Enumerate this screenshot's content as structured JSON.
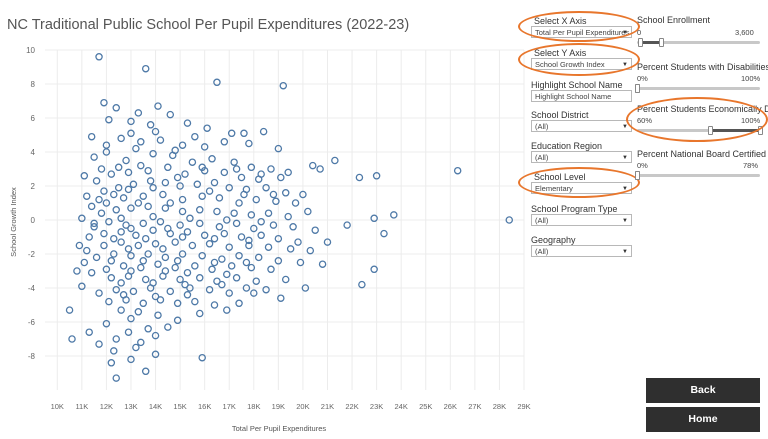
{
  "chart_data": {
    "type": "scatter",
    "title": "NC Traditional Public School Per Pupil Expenditures (2022-23)",
    "xlabel": "Total Per Pupil Expenditures",
    "ylabel": "School Growth Index",
    "xlim": [
      9500,
      29000
    ],
    "ylim": [
      -10,
      10
    ],
    "x_ticks": [
      "10K",
      "11K",
      "12K",
      "13K",
      "14K",
      "15K",
      "16K",
      "17K",
      "18K",
      "19K",
      "20K",
      "21K",
      "22K",
      "23K",
      "24K",
      "25K",
      "26K",
      "27K",
      "28K",
      "29K"
    ],
    "y_ticks": [
      "10",
      "8",
      "6",
      "4",
      "2",
      "0",
      "-2",
      "-4",
      "-6",
      "-8"
    ],
    "grid": true,
    "marker": "hollow-circle",
    "color": "#4e79a7",
    "points": [
      [
        11.7,
        9.6
      ],
      [
        13.6,
        8.9
      ],
      [
        16.5,
        8.1
      ],
      [
        19.2,
        7.9
      ],
      [
        11.9,
        6.9
      ],
      [
        12.4,
        6.6
      ],
      [
        13.3,
        6.3
      ],
      [
        14.1,
        6.7
      ],
      [
        14.6,
        6.2
      ],
      [
        12.1,
        5.9
      ],
      [
        13.0,
        5.8
      ],
      [
        13.8,
        5.6
      ],
      [
        15.3,
        5.7
      ],
      [
        16.1,
        5.4
      ],
      [
        17.1,
        5.1
      ],
      [
        17.6,
        5.1
      ],
      [
        18.4,
        5.2
      ],
      [
        11.4,
        4.9
      ],
      [
        12.6,
        4.8
      ],
      [
        13.4,
        4.6
      ],
      [
        14.2,
        4.7
      ],
      [
        15.1,
        4.4
      ],
      [
        16.0,
        4.3
      ],
      [
        19.0,
        4.2
      ],
      [
        21.3,
        3.5
      ],
      [
        20.4,
        3.2
      ],
      [
        20.7,
        3.0
      ],
      [
        26.3,
        2.9
      ],
      [
        22.3,
        2.5
      ],
      [
        23.0,
        2.6
      ],
      [
        23.7,
        0.3
      ],
      [
        22.9,
        0.1
      ],
      [
        21.8,
        -0.3
      ],
      [
        28.4,
        0.0
      ],
      [
        23.3,
        -0.8
      ],
      [
        21.0,
        -1.3
      ],
      [
        20.8,
        -2.6
      ],
      [
        22.9,
        -2.9
      ],
      [
        22.4,
        -3.8
      ],
      [
        20.1,
        -4.0
      ],
      [
        19.1,
        -4.6
      ],
      [
        18.0,
        -4.3
      ],
      [
        17.0,
        -4.3
      ],
      [
        16.9,
        -5.3
      ],
      [
        15.8,
        -5.5
      ],
      [
        14.9,
        -5.9
      ],
      [
        13.0,
        -5.8
      ],
      [
        12.0,
        -6.1
      ],
      [
        11.3,
        -6.6
      ],
      [
        10.6,
        -7.0
      ],
      [
        10.5,
        -5.3
      ],
      [
        11.7,
        -7.3
      ],
      [
        12.3,
        -7.7
      ],
      [
        13.4,
        -7.2
      ],
      [
        14.0,
        -6.8
      ],
      [
        15.9,
        -8.1
      ],
      [
        12.2,
        -8.4
      ],
      [
        13.0,
        -8.2
      ],
      [
        14.0,
        -7.9
      ],
      [
        13.6,
        -8.9
      ],
      [
        12.4,
        -9.3
      ],
      [
        11.0,
        -3.9
      ],
      [
        10.8,
        -3.0
      ],
      [
        10.9,
        -1.5
      ],
      [
        11.0,
        0.1
      ],
      [
        11.2,
        1.4
      ],
      [
        11.1,
        2.6
      ],
      [
        11.5,
        3.7
      ],
      [
        12.0,
        4.0
      ],
      [
        12.8,
        3.5
      ],
      [
        13.2,
        4.2
      ],
      [
        13.9,
        3.9
      ],
      [
        14.7,
        3.8
      ],
      [
        15.5,
        3.4
      ],
      [
        16.3,
        3.6
      ],
      [
        17.2,
        3.4
      ],
      [
        17.9,
        3.1
      ],
      [
        18.7,
        3.0
      ],
      [
        19.4,
        2.8
      ],
      [
        18.2,
        2.4
      ],
      [
        17.5,
        2.5
      ],
      [
        16.8,
        2.8
      ],
      [
        16.0,
        2.9
      ],
      [
        15.2,
        2.7
      ],
      [
        14.5,
        3.1
      ],
      [
        13.7,
        2.9
      ],
      [
        12.9,
        2.8
      ],
      [
        12.2,
        2.7
      ],
      [
        11.6,
        2.3
      ],
      [
        11.9,
        1.7
      ],
      [
        12.5,
        1.9
      ],
      [
        13.1,
        2.1
      ],
      [
        13.8,
        2.3
      ],
      [
        14.4,
        2.2
      ],
      [
        15.0,
        2.0
      ],
      [
        15.7,
        2.1
      ],
      [
        16.4,
        2.2
      ],
      [
        17.0,
        1.9
      ],
      [
        17.7,
        1.8
      ],
      [
        18.5,
        1.9
      ],
      [
        19.3,
        1.6
      ],
      [
        20.0,
        1.5
      ],
      [
        19.7,
        1.0
      ],
      [
        18.9,
        1.1
      ],
      [
        18.1,
        1.2
      ],
      [
        17.4,
        1.0
      ],
      [
        16.6,
        1.3
      ],
      [
        15.9,
        1.4
      ],
      [
        15.1,
        1.2
      ],
      [
        14.3,
        1.5
      ],
      [
        13.5,
        1.4
      ],
      [
        12.7,
        1.3
      ],
      [
        12.0,
        1.0
      ],
      [
        11.4,
        0.8
      ],
      [
        11.8,
        0.4
      ],
      [
        12.4,
        0.6
      ],
      [
        13.0,
        0.7
      ],
      [
        13.7,
        0.8
      ],
      [
        14.4,
        0.7
      ],
      [
        15.1,
        0.5
      ],
      [
        15.8,
        0.6
      ],
      [
        16.5,
        0.5
      ],
      [
        17.2,
        0.4
      ],
      [
        17.9,
        0.3
      ],
      [
        18.6,
        0.4
      ],
      [
        19.4,
        0.2
      ],
      [
        20.2,
        0.5
      ],
      [
        20.5,
        -0.6
      ],
      [
        19.6,
        -0.4
      ],
      [
        18.8,
        -0.3
      ],
      [
        18.0,
        -0.5
      ],
      [
        17.3,
        -0.2
      ],
      [
        16.6,
        -0.4
      ],
      [
        15.8,
        -0.2
      ],
      [
        15.0,
        -0.3
      ],
      [
        14.2,
        -0.1
      ],
      [
        13.5,
        -0.2
      ],
      [
        12.8,
        -0.3
      ],
      [
        12.1,
        -0.1
      ],
      [
        11.5,
        -0.4
      ],
      [
        11.3,
        -1.0
      ],
      [
        11.9,
        -0.8
      ],
      [
        12.6,
        -0.7
      ],
      [
        13.2,
        -0.9
      ],
      [
        13.9,
        -0.6
      ],
      [
        14.6,
        -0.8
      ],
      [
        15.3,
        -0.7
      ],
      [
        16.0,
        -0.9
      ],
      [
        16.8,
        -0.8
      ],
      [
        17.5,
        -1.0
      ],
      [
        18.3,
        -0.9
      ],
      [
        19.0,
        -1.1
      ],
      [
        19.8,
        -1.3
      ],
      [
        20.3,
        -1.8
      ],
      [
        19.5,
        -1.7
      ],
      [
        18.6,
        -1.6
      ],
      [
        17.8,
        -1.5
      ],
      [
        17.0,
        -1.6
      ],
      [
        16.2,
        -1.4
      ],
      [
        15.5,
        -1.5
      ],
      [
        14.8,
        -1.3
      ],
      [
        14.0,
        -1.4
      ],
      [
        13.3,
        -1.5
      ],
      [
        12.6,
        -1.3
      ],
      [
        11.9,
        -1.5
      ],
      [
        11.2,
        -1.8
      ],
      [
        11.6,
        -2.2
      ],
      [
        12.3,
        -2.0
      ],
      [
        13.0,
        -2.1
      ],
      [
        13.7,
        -2.0
      ],
      [
        14.4,
        -2.2
      ],
      [
        15.1,
        -2.0
      ],
      [
        15.9,
        -2.1
      ],
      [
        16.7,
        -2.3
      ],
      [
        17.4,
        -2.1
      ],
      [
        18.2,
        -2.2
      ],
      [
        19.0,
        -2.4
      ],
      [
        19.9,
        -2.5
      ],
      [
        18.7,
        -2.9
      ],
      [
        17.9,
        -2.8
      ],
      [
        17.1,
        -2.7
      ],
      [
        16.3,
        -2.9
      ],
      [
        15.6,
        -2.7
      ],
      [
        14.8,
        -2.8
      ],
      [
        14.1,
        -2.6
      ],
      [
        13.4,
        -2.8
      ],
      [
        12.7,
        -2.7
      ],
      [
        12.0,
        -2.9
      ],
      [
        11.4,
        -3.1
      ],
      [
        12.2,
        -3.4
      ],
      [
        12.9,
        -3.3
      ],
      [
        13.6,
        -3.5
      ],
      [
        14.3,
        -3.3
      ],
      [
        15.0,
        -3.5
      ],
      [
        15.8,
        -3.4
      ],
      [
        16.5,
        -3.6
      ],
      [
        17.3,
        -3.4
      ],
      [
        18.1,
        -3.6
      ],
      [
        19.3,
        -3.5
      ],
      [
        18.5,
        -4.1
      ],
      [
        17.7,
        -4.0
      ],
      [
        16.2,
        -4.1
      ],
      [
        15.4,
        -4.0
      ],
      [
        14.6,
        -4.2
      ],
      [
        13.8,
        -4.0
      ],
      [
        13.1,
        -4.2
      ],
      [
        12.4,
        -4.1
      ],
      [
        11.7,
        -4.3
      ],
      [
        12.1,
        -4.8
      ],
      [
        12.8,
        -4.7
      ],
      [
        13.5,
        -4.9
      ],
      [
        14.2,
        -4.7
      ],
      [
        14.9,
        -4.9
      ],
      [
        15.6,
        -4.8
      ],
      [
        16.4,
        -5.0
      ],
      [
        17.4,
        -4.9
      ],
      [
        13.3,
        -5.4
      ],
      [
        12.6,
        -5.3
      ],
      [
        14.1,
        -5.6
      ],
      [
        14.5,
        -6.3
      ],
      [
        13.7,
        -6.4
      ],
      [
        12.9,
        -6.6
      ],
      [
        12.4,
        -7.0
      ],
      [
        13.2,
        -7.5
      ],
      [
        12.0,
        4.4
      ],
      [
        13.0,
        5.1
      ],
      [
        14.0,
        5.2
      ],
      [
        15.6,
        4.9
      ],
      [
        16.8,
        4.6
      ],
      [
        17.8,
        4.5
      ],
      [
        14.8,
        4.1
      ],
      [
        13.4,
        3.2
      ],
      [
        12.5,
        3.1
      ],
      [
        11.8,
        3.0
      ],
      [
        15.9,
        3.1
      ],
      [
        17.3,
        3.0
      ],
      [
        18.3,
        2.7
      ],
      [
        19.1,
        2.5
      ],
      [
        14.9,
        2.5
      ],
      [
        13.9,
        1.9
      ],
      [
        12.9,
        1.8
      ],
      [
        12.3,
        1.5
      ],
      [
        16.2,
        1.7
      ],
      [
        17.6,
        1.5
      ],
      [
        18.8,
        1.5
      ],
      [
        14.6,
        1.0
      ],
      [
        13.3,
        1.0
      ],
      [
        12.6,
        0.1
      ],
      [
        13.9,
        0.2
      ],
      [
        15.4,
        0.1
      ],
      [
        16.9,
        0.0
      ],
      [
        18.3,
        -0.1
      ],
      [
        14.5,
        -0.5
      ],
      [
        13.0,
        -0.5
      ],
      [
        12.3,
        -1.1
      ],
      [
        13.6,
        -1.1
      ],
      [
        15.1,
        -1.0
      ],
      [
        16.4,
        -1.1
      ],
      [
        17.8,
        -1.2
      ],
      [
        14.3,
        -1.7
      ],
      [
        12.9,
        -1.7
      ],
      [
        12.2,
        -2.4
      ],
      [
        13.5,
        -2.4
      ],
      [
        14.9,
        -2.4
      ],
      [
        16.4,
        -2.5
      ],
      [
        17.7,
        -2.5
      ],
      [
        14.4,
        -3.0
      ],
      [
        13.0,
        -3.0
      ],
      [
        15.3,
        -3.1
      ],
      [
        16.9,
        -3.2
      ],
      [
        13.9,
        -3.7
      ],
      [
        12.6,
        -3.7
      ],
      [
        15.2,
        -3.8
      ],
      [
        16.7,
        -3.8
      ],
      [
        14.0,
        -4.5
      ],
      [
        12.7,
        -4.4
      ],
      [
        15.3,
        -4.4
      ],
      [
        11.5,
        -0.2
      ],
      [
        11.7,
        1.2
      ],
      [
        11.1,
        -2.5
      ]
    ]
  },
  "controls": {
    "select_x": {
      "label": "Select X Axis",
      "value": "Total Per Pupil Expenditures"
    },
    "select_y": {
      "label": "Select Y Axis",
      "value": "School Growth Index"
    },
    "highlight": {
      "label": "Highlight School Name",
      "value": "Highlight School Name"
    },
    "district": {
      "label": "School District",
      "value": "(All)"
    },
    "region": {
      "label": "Education Region",
      "value": "(All)"
    },
    "level": {
      "label": "School Level",
      "value": "Elementary"
    },
    "program": {
      "label": "School Program Type",
      "value": "(All)"
    },
    "geography": {
      "label": "Geography",
      "value": "(All)"
    }
  },
  "sliders": {
    "enrollment": {
      "label": "School Enrollment",
      "min": "0",
      "max": "3,600",
      "fill_start": 0.03,
      "fill_end": 0.2
    },
    "disabilities": {
      "label": "Percent Students with Disabilities",
      "min": "0%",
      "max": "100%",
      "fill_start": 0.0,
      "fill_end": 0.0
    },
    "econ": {
      "label": "Percent Students Economically Disadv...",
      "min": "60%",
      "max": "100%",
      "fill_start": 0.6,
      "fill_end": 1.0
    },
    "nbct": {
      "label": "Percent National Board Certified Teac...",
      "min": "0%",
      "max": "78%",
      "fill_start": 0.0,
      "fill_end": 0.0
    }
  },
  "buttons": {
    "back": "Back",
    "home": "Home"
  },
  "accent_color": "#e8762c"
}
